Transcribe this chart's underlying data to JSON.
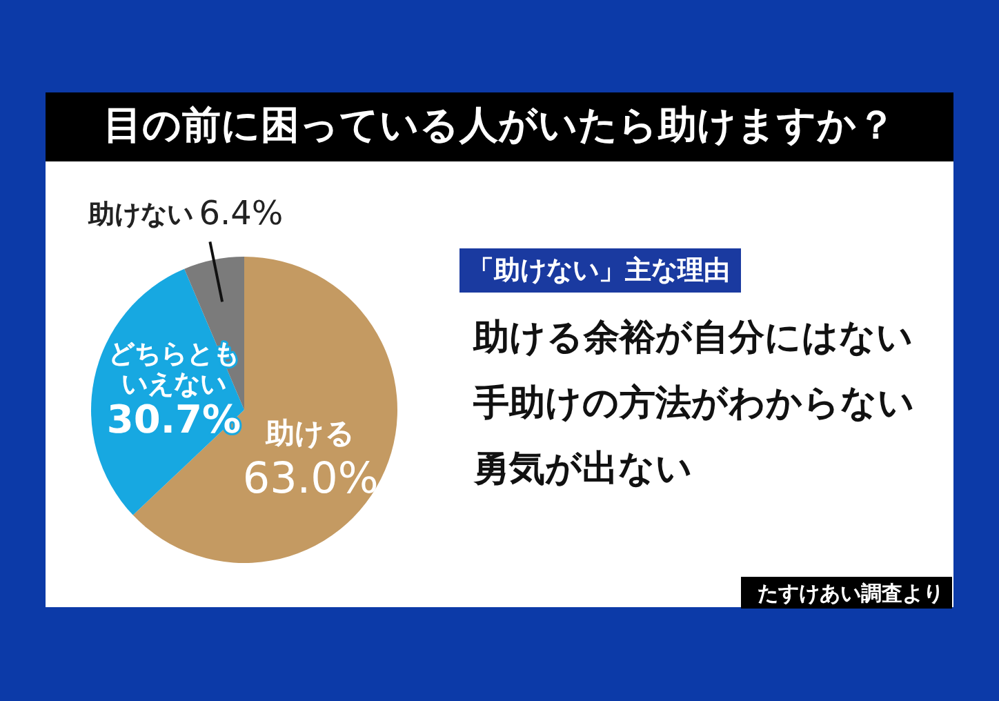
{
  "chart_data": {
    "type": "pie",
    "title": "目の前に困っている人がいたら助けますか？",
    "categories": [
      "助ける",
      "どちらともいえない",
      "助けない"
    ],
    "values": [
      63.0,
      30.7,
      6.4
    ],
    "colors": [
      "#c49a62",
      "#17a8e1",
      "#7b7b7b"
    ],
    "value_labels": [
      "63.0%",
      "30.7%",
      "6.4%"
    ],
    "annotations": [
      "「助けない」主な理由",
      "助ける余裕が自分にはない",
      "手助けの方法がわからない",
      "勇気が出ない",
      "たすけあい調査より"
    ]
  }
}
